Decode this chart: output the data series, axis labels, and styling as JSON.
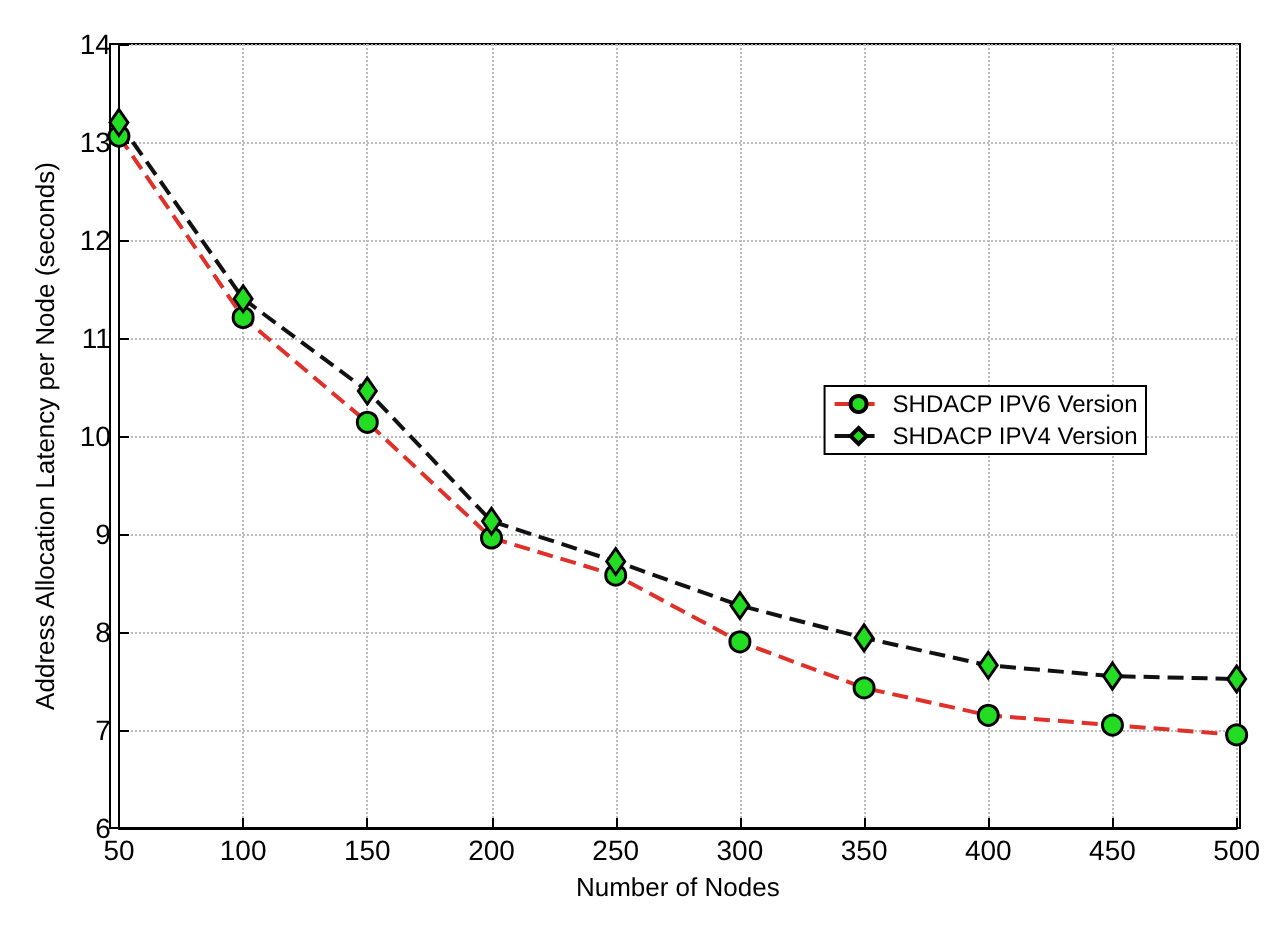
{
  "chart_data": {
    "type": "line",
    "xlabel": "Number of Nodes",
    "ylabel": "Address Allocation Latency per Node (seconds)",
    "x": [
      50,
      100,
      150,
      200,
      250,
      300,
      350,
      400,
      450,
      500
    ],
    "series": [
      {
        "name": "SHDACP IPV6 Version",
        "color": "#e0302a",
        "marker": "circle",
        "values": [
          13.06,
          11.21,
          10.14,
          8.96,
          8.58,
          7.9,
          7.43,
          7.15,
          7.05,
          6.95
        ]
      },
      {
        "name": "SHDACP IPV4 Version",
        "color": "#111111",
        "marker": "diamond",
        "values": [
          13.2,
          11.4,
          10.46,
          9.13,
          8.72,
          8.27,
          7.94,
          7.66,
          7.55,
          7.52
        ]
      }
    ],
    "xlim": [
      50,
      500
    ],
    "xticks": [
      50,
      100,
      150,
      200,
      250,
      300,
      350,
      400,
      450,
      500
    ],
    "ylim": [
      6,
      14
    ],
    "yticks": [
      6,
      7,
      8,
      9,
      10,
      11,
      12,
      13,
      14
    ],
    "grid": true,
    "legend": "right",
    "line_style": "dashed"
  }
}
